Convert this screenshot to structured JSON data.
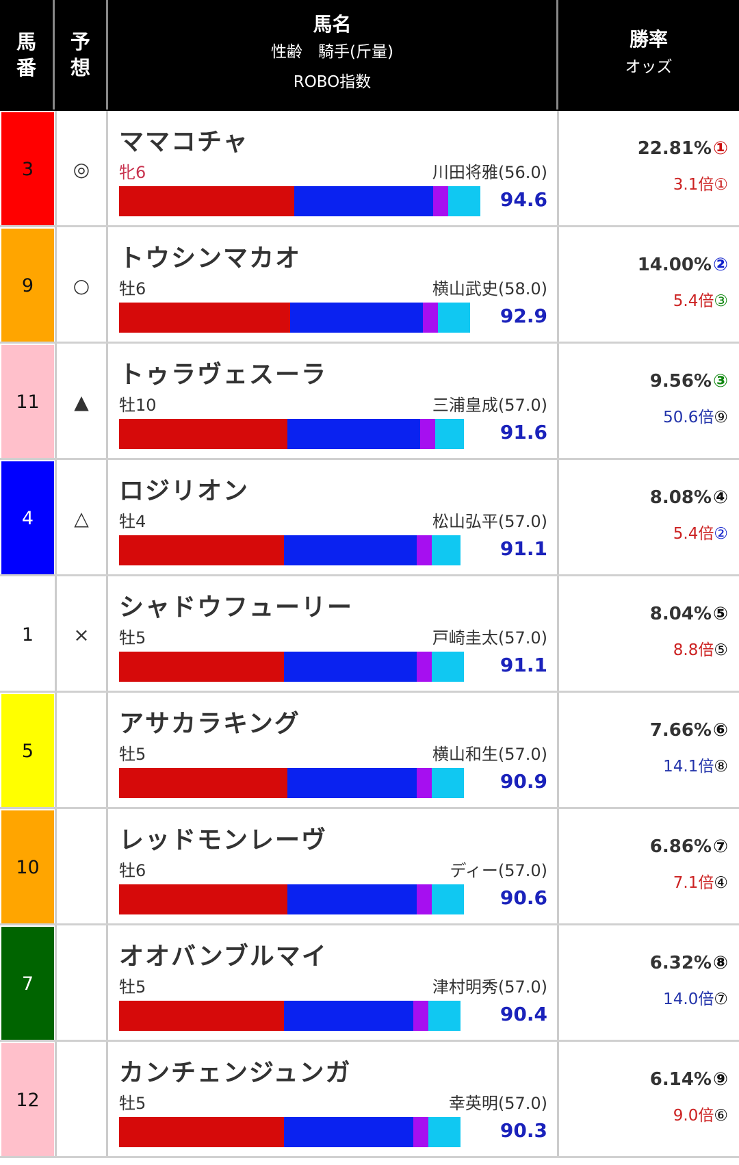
{
  "header": {
    "col1": "馬\n番",
    "col2": "予\n想",
    "col3_main": "馬名",
    "col3_sub1": "性齢　騎手(斤量)",
    "col3_sub2": "ROBO指数",
    "col4_main": "勝率",
    "col4_sub": "オッズ"
  },
  "colors": {
    "bar_red": "#d60a0a",
    "bar_blue": "#0a22f0",
    "bar_purple": "#a60ff0",
    "bar_cyan": "#10c8f2",
    "robo_text": "#1a22bb",
    "odds_red": "#cc2222",
    "odds_blue": "#2233aa",
    "circle_red": "#cc1111",
    "circle_blue": "#1122cc",
    "circle_green": "#118811",
    "circle_black": "#111111"
  },
  "horses": [
    {
      "number": "3",
      "gate_color": "#ff0000",
      "num_color": "#111111",
      "mark": "◎",
      "name": "ママコチャ",
      "sex_age": "牝6",
      "mare": true,
      "jockey": "川田将雅(56.0)",
      "robo": "94.6",
      "bar": {
        "red": 0.41,
        "blue": 0.325,
        "purple": 0.035,
        "cyan": 0.075
      },
      "winrate": "22.81%",
      "win_rank": "①",
      "win_rank_color": "#cc1111",
      "odds": "3.1倍",
      "odds_rank": "①",
      "odds_color": "#cc2222"
    },
    {
      "number": "9",
      "gate_color": "#ffa500",
      "num_color": "#111111",
      "mark": "○",
      "name": "トウシンマカオ",
      "sex_age": "牡6",
      "mare": false,
      "jockey": "横山武史(58.0)",
      "robo": "92.9",
      "bar": {
        "red": 0.4,
        "blue": 0.31,
        "purple": 0.035,
        "cyan": 0.075
      },
      "winrate": "14.00%",
      "win_rank": "②",
      "win_rank_color": "#1122cc",
      "odds": "5.4倍",
      "odds_rank": "③",
      "odds_color": "#cc2222",
      "odds_rank_color": "#118811"
    },
    {
      "number": "11",
      "gate_color": "#ffc0cb",
      "num_color": "#111111",
      "mark": "▲",
      "name": "トゥラヴェスーラ",
      "sex_age": "牡10",
      "mare": false,
      "jockey": "三浦皇成(57.0)",
      "robo": "91.6",
      "bar": {
        "red": 0.393,
        "blue": 0.31,
        "purple": 0.035,
        "cyan": 0.067
      },
      "winrate": "9.56%",
      "win_rank": "③",
      "win_rank_color": "#118811",
      "odds": "50.6倍",
      "odds_rank": "⑨",
      "odds_color": "#2233aa",
      "odds_rank_color": "#111111"
    },
    {
      "number": "4",
      "gate_color": "#0000ff",
      "num_color": "#ffffff",
      "mark": "△",
      "name": "ロジリオン",
      "sex_age": "牡4",
      "mare": false,
      "jockey": "松山弘平(57.0)",
      "robo": "91.1",
      "bar": {
        "red": 0.386,
        "blue": 0.31,
        "purple": 0.035,
        "cyan": 0.067
      },
      "winrate": "8.08%",
      "win_rank": "④",
      "win_rank_color": "#111111",
      "odds": "5.4倍",
      "odds_rank": "②",
      "odds_color": "#cc2222",
      "odds_rank_color": "#1122cc"
    },
    {
      "number": "1",
      "gate_color": "#ffffff",
      "num_color": "#111111",
      "mark": "×",
      "name": "シャドウフューリー",
      "sex_age": "牡5",
      "mare": false,
      "jockey": "戸崎圭太(57.0)",
      "robo": "91.1",
      "bar": {
        "red": 0.386,
        "blue": 0.31,
        "purple": 0.035,
        "cyan": 0.075
      },
      "winrate": "8.04%",
      "win_rank": "⑤",
      "win_rank_color": "#111111",
      "odds": "8.8倍",
      "odds_rank": "⑤",
      "odds_color": "#cc2222",
      "odds_rank_color": "#111111"
    },
    {
      "number": "5",
      "gate_color": "#ffff00",
      "num_color": "#111111",
      "mark": "",
      "name": "アサカラキング",
      "sex_age": "牡5",
      "mare": false,
      "jockey": "横山和生(57.0)",
      "robo": "90.9",
      "bar": {
        "red": 0.393,
        "blue": 0.303,
        "purple": 0.035,
        "cyan": 0.075
      },
      "winrate": "7.66%",
      "win_rank": "⑥",
      "win_rank_color": "#111111",
      "odds": "14.1倍",
      "odds_rank": "⑧",
      "odds_color": "#2233aa",
      "odds_rank_color": "#111111"
    },
    {
      "number": "10",
      "gate_color": "#ffa500",
      "num_color": "#111111",
      "mark": "",
      "name": "レッドモンレーヴ",
      "sex_age": "牡6",
      "mare": false,
      "jockey": "ディー(57.0)",
      "robo": "90.6",
      "bar": {
        "red": 0.393,
        "blue": 0.303,
        "purple": 0.035,
        "cyan": 0.075
      },
      "winrate": "6.86%",
      "win_rank": "⑦",
      "win_rank_color": "#111111",
      "odds": "7.1倍",
      "odds_rank": "④",
      "odds_color": "#cc2222",
      "odds_rank_color": "#111111"
    },
    {
      "number": "7",
      "gate_color": "#006400",
      "num_color": "#ffffff",
      "mark": "",
      "name": "オオバンブルマイ",
      "sex_age": "牡5",
      "mare": false,
      "jockey": "津村明秀(57.0)",
      "robo": "90.4",
      "bar": {
        "red": 0.386,
        "blue": 0.303,
        "purple": 0.035,
        "cyan": 0.075
      },
      "winrate": "6.32%",
      "win_rank": "⑧",
      "win_rank_color": "#111111",
      "odds": "14.0倍",
      "odds_rank": "⑦",
      "odds_color": "#2233aa",
      "odds_rank_color": "#111111"
    },
    {
      "number": "12",
      "gate_color": "#ffc0cb",
      "num_color": "#111111",
      "mark": "",
      "name": "カンチェンジュンガ",
      "sex_age": "牡5",
      "mare": false,
      "jockey": "幸英明(57.0)",
      "robo": "90.3",
      "bar": {
        "red": 0.386,
        "blue": 0.303,
        "purple": 0.035,
        "cyan": 0.075
      },
      "winrate": "6.14%",
      "win_rank": "⑨",
      "win_rank_color": "#111111",
      "odds": "9.0倍",
      "odds_rank": "⑥",
      "odds_color": "#cc2222",
      "odds_rank_color": "#111111"
    }
  ]
}
